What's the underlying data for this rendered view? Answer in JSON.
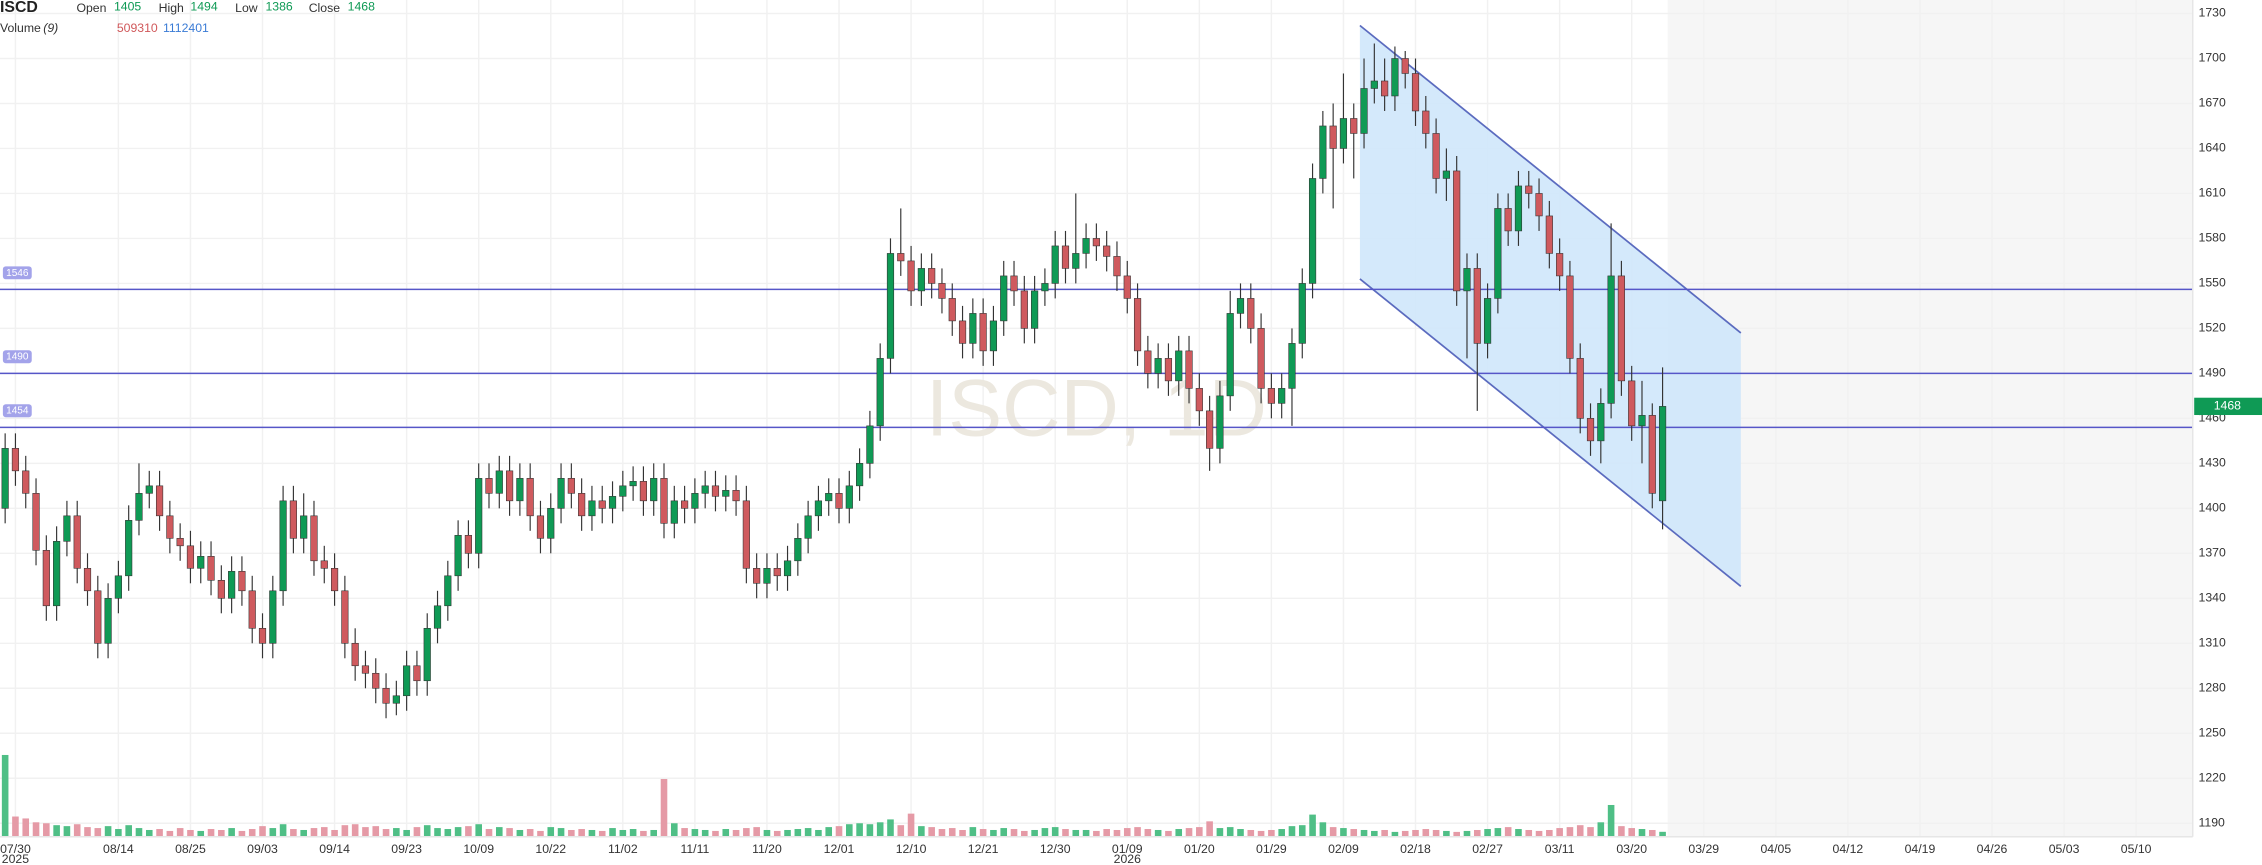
{
  "header": {
    "symbol": "ISCD",
    "open_label": "Open",
    "high_label": "High",
    "low_label": "Low",
    "close_label": "Close",
    "volume_label": "Volume",
    "volume_period": "(9)"
  },
  "watermark": "ISCD, 1D",
  "chart_data": [
    {
      "type": "candlestick",
      "up_color": "#0f9a55",
      "down_color": "#cf5a5e",
      "wick_color": "#333333",
      "grid": true,
      "xlim": [
        -0.5,
        212.5
      ],
      "ylim": [
        1181,
        1739
      ],
      "yticks": [
        1190,
        1220,
        1250,
        1280,
        1310,
        1340,
        1370,
        1400,
        1430,
        1460,
        1490,
        1520,
        1550,
        1580,
        1610,
        1640,
        1670,
        1700,
        1730
      ],
      "xticks": [
        {
          "value": 1,
          "label": "07/30",
          "year": "2025"
        },
        {
          "value": 11,
          "label": "08/14"
        },
        {
          "value": 18,
          "label": "08/25"
        },
        {
          "value": 25,
          "label": "09/03"
        },
        {
          "value": 32,
          "label": "09/14"
        },
        {
          "value": 39,
          "label": "09/23"
        },
        {
          "value": 46,
          "label": "10/09"
        },
        {
          "value": 53,
          "label": "10/22"
        },
        {
          "value": 60,
          "label": "11/02"
        },
        {
          "value": 67,
          "label": "11/11"
        },
        {
          "value": 74,
          "label": "11/20"
        },
        {
          "value": 81,
          "label": "12/01"
        },
        {
          "value": 88,
          "label": "12/10"
        },
        {
          "value": 95,
          "label": "12/21"
        },
        {
          "value": 102,
          "label": "12/30"
        },
        {
          "value": 109,
          "label": "01/09",
          "year": "2026"
        },
        {
          "value": 116,
          "label": "01/20"
        },
        {
          "value": 123,
          "label": "01/29"
        },
        {
          "value": 130,
          "label": "02/09"
        },
        {
          "value": 137,
          "label": "02/18"
        },
        {
          "value": 144,
          "label": "02/27"
        },
        {
          "value": 151,
          "label": "03/11"
        },
        {
          "value": 158,
          "label": "03/20"
        },
        {
          "value": 165,
          "label": "03/29"
        },
        {
          "value": 172,
          "label": "04/05"
        },
        {
          "value": 179,
          "label": "04/12"
        },
        {
          "value": 186,
          "label": "04/19"
        },
        {
          "value": 193,
          "label": "04/26"
        },
        {
          "value": 200,
          "label": "05/03"
        },
        {
          "value": 207,
          "label": "05/10"
        }
      ],
      "open": [
        1400,
        1440,
        1425,
        1410,
        1372,
        1335,
        1378,
        1395,
        1360,
        1345,
        1310,
        1340,
        1355,
        1392,
        1410,
        1415,
        1395,
        1380,
        1375,
        1360,
        1368,
        1352,
        1340,
        1358,
        1345,
        1320,
        1310,
        1345,
        1405,
        1380,
        1395,
        1365,
        1360,
        1345,
        1310,
        1295,
        1290,
        1280,
        1270,
        1275,
        1295,
        1285,
        1320,
        1335,
        1355,
        1382,
        1370,
        1420,
        1410,
        1425,
        1405,
        1420,
        1395,
        1380,
        1400,
        1420,
        1410,
        1395,
        1405,
        1400,
        1408,
        1415,
        1418,
        1405,
        1420,
        1390,
        1405,
        1400,
        1410,
        1415,
        1408,
        1412,
        1405,
        1360,
        1350,
        1360,
        1355,
        1365,
        1380,
        1395,
        1405,
        1410,
        1400,
        1415,
        1430,
        1455,
        1500,
        1570,
        1565,
        1545,
        1560,
        1550,
        1540,
        1525,
        1510,
        1530,
        1505,
        1525,
        1555,
        1545,
        1520,
        1545,
        1550,
        1575,
        1560,
        1570,
        1580,
        1575,
        1568,
        1555,
        1540,
        1505,
        1490,
        1500,
        1485,
        1505,
        1480,
        1465,
        1440,
        1475,
        1530,
        1540,
        1520,
        1480,
        1470,
        1480,
        1510,
        1550,
        1620,
        1655,
        1640,
        1660,
        1650,
        1680,
        1685,
        1675,
        1700,
        1690,
        1665,
        1650,
        1620,
        1625,
        1545,
        1560,
        1510,
        1540,
        1600,
        1585,
        1615,
        1610,
        1595,
        1570,
        1555,
        1500,
        1460,
        1445,
        1470,
        1555,
        1485,
        1455,
        1462,
        1405
      ],
      "high": [
        1450,
        1450,
        1435,
        1420,
        1382,
        1388,
        1405,
        1405,
        1370,
        1355,
        1350,
        1365,
        1402,
        1430,
        1425,
        1425,
        1405,
        1390,
        1385,
        1378,
        1378,
        1362,
        1368,
        1368,
        1355,
        1330,
        1355,
        1415,
        1415,
        1410,
        1405,
        1375,
        1370,
        1355,
        1320,
        1305,
        1300,
        1290,
        1285,
        1305,
        1305,
        1330,
        1345,
        1365,
        1392,
        1392,
        1430,
        1430,
        1435,
        1435,
        1430,
        1430,
        1405,
        1410,
        1430,
        1430,
        1420,
        1415,
        1415,
        1418,
        1425,
        1428,
        1428,
        1430,
        1430,
        1415,
        1415,
        1420,
        1425,
        1425,
        1422,
        1422,
        1415,
        1370,
        1370,
        1370,
        1375,
        1390,
        1405,
        1415,
        1420,
        1420,
        1425,
        1440,
        1465,
        1510,
        1580,
        1600,
        1575,
        1570,
        1570,
        1560,
        1550,
        1535,
        1540,
        1540,
        1535,
        1565,
        1565,
        1555,
        1555,
        1560,
        1585,
        1585,
        1610,
        1590,
        1590,
        1585,
        1578,
        1565,
        1550,
        1515,
        1510,
        1510,
        1515,
        1515,
        1490,
        1475,
        1485,
        1545,
        1550,
        1550,
        1530,
        1490,
        1490,
        1520,
        1560,
        1630,
        1665,
        1670,
        1690,
        1670,
        1700,
        1710,
        1700,
        1708,
        1705,
        1700,
        1675,
        1660,
        1640,
        1635,
        1570,
        1570,
        1550,
        1610,
        1610,
        1625,
        1625,
        1620,
        1605,
        1580,
        1565,
        1510,
        1470,
        1480,
        1590,
        1565,
        1495,
        1485,
        1470,
        1494
      ],
      "low": [
        1390,
        1415,
        1400,
        1362,
        1325,
        1325,
        1368,
        1350,
        1335,
        1300,
        1300,
        1330,
        1345,
        1382,
        1400,
        1385,
        1370,
        1365,
        1350,
        1350,
        1342,
        1330,
        1330,
        1335,
        1310,
        1300,
        1300,
        1335,
        1370,
        1370,
        1355,
        1350,
        1335,
        1300,
        1285,
        1280,
        1270,
        1260,
        1262,
        1265,
        1275,
        1275,
        1310,
        1325,
        1345,
        1360,
        1360,
        1400,
        1400,
        1395,
        1395,
        1385,
        1370,
        1370,
        1390,
        1400,
        1385,
        1385,
        1390,
        1390,
        1398,
        1405,
        1395,
        1395,
        1380,
        1380,
        1390,
        1390,
        1400,
        1398,
        1398,
        1395,
        1350,
        1340,
        1340,
        1345,
        1345,
        1355,
        1370,
        1385,
        1395,
        1390,
        1390,
        1405,
        1420,
        1445,
        1490,
        1555,
        1535,
        1535,
        1540,
        1530,
        1515,
        1500,
        1500,
        1495,
        1495,
        1515,
        1535,
        1510,
        1510,
        1535,
        1540,
        1550,
        1550,
        1560,
        1565,
        1558,
        1545,
        1530,
        1495,
        1480,
        1480,
        1475,
        1475,
        1470,
        1455,
        1425,
        1430,
        1465,
        1520,
        1510,
        1470,
        1460,
        1460,
        1455,
        1500,
        1540,
        1610,
        1600,
        1630,
        1620,
        1640,
        1670,
        1665,
        1665,
        1680,
        1655,
        1640,
        1610,
        1605,
        1535,
        1500,
        1465,
        1500,
        1530,
        1575,
        1575,
        1600,
        1585,
        1560,
        1545,
        1490,
        1450,
        1435,
        1430,
        1460,
        1475,
        1445,
        1430,
        1400,
        1386
      ],
      "close": [
        1440,
        1425,
        1410,
        1372,
        1335,
        1378,
        1395,
        1360,
        1345,
        1310,
        1340,
        1355,
        1392,
        1410,
        1415,
        1395,
        1380,
        1375,
        1360,
        1368,
        1352,
        1340,
        1358,
        1345,
        1320,
        1310,
        1345,
        1405,
        1380,
        1395,
        1365,
        1360,
        1345,
        1310,
        1295,
        1290,
        1280,
        1270,
        1275,
        1295,
        1285,
        1320,
        1335,
        1355,
        1382,
        1370,
        1420,
        1410,
        1425,
        1405,
        1420,
        1395,
        1380,
        1400,
        1420,
        1410,
        1395,
        1405,
        1400,
        1408,
        1415,
        1418,
        1405,
        1420,
        1390,
        1405,
        1400,
        1410,
        1415,
        1408,
        1412,
        1405,
        1360,
        1350,
        1360,
        1355,
        1365,
        1380,
        1395,
        1405,
        1410,
        1400,
        1415,
        1430,
        1455,
        1500,
        1570,
        1565,
        1545,
        1560,
        1550,
        1540,
        1525,
        1510,
        1530,
        1505,
        1525,
        1555,
        1545,
        1520,
        1545,
        1550,
        1575,
        1560,
        1570,
        1580,
        1575,
        1568,
        1555,
        1540,
        1505,
        1490,
        1500,
        1485,
        1505,
        1480,
        1465,
        1440,
        1475,
        1530,
        1540,
        1520,
        1480,
        1470,
        1480,
        1510,
        1550,
        1620,
        1655,
        1640,
        1660,
        1650,
        1680,
        1685,
        1675,
        1700,
        1690,
        1665,
        1650,
        1620,
        1625,
        1545,
        1560,
        1510,
        1540,
        1600,
        1585,
        1615,
        1610,
        1595,
        1570,
        1555,
        1500,
        1460,
        1445,
        1470,
        1555,
        1485,
        1455,
        1462,
        1410,
        1468
      ],
      "levels": [
        1546,
        1490,
        1454
      ],
      "level_color": "#5656c8",
      "channel": {
        "x": [
          131.6,
          168.6
        ],
        "upper": [
          1722,
          1517
        ],
        "lower": [
          1553,
          1348
        ],
        "color": "#5b6bbf",
        "fill": "#cfe7fb"
      }
    },
    {
      "type": "bar",
      "up_color": "#4fbf86",
      "down_color": "#e59aa6",
      "ylim": [
        0,
        9000000
      ],
      "volume_ma": 1112401,
      "values": [
        8500000,
        2100000,
        1900000,
        1500000,
        1400000,
        1200000,
        1100000,
        1300000,
        1000000,
        900000,
        1100000,
        800000,
        1200000,
        900000,
        700000,
        800000,
        600000,
        900000,
        700000,
        600000,
        800000,
        700000,
        900000,
        600000,
        800000,
        1100000,
        900000,
        1300000,
        800000,
        700000,
        900000,
        1000000,
        700000,
        1200000,
        1300000,
        1000000,
        1100000,
        800000,
        900000,
        700000,
        1000000,
        1200000,
        900000,
        800000,
        1000000,
        1100000,
        1300000,
        800000,
        1000000,
        900000,
        700000,
        800000,
        600000,
        1000000,
        900000,
        700000,
        800000,
        700000,
        600000,
        900000,
        700000,
        800000,
        600000,
        700000,
        6000000,
        1400000,
        900000,
        800000,
        700000,
        600000,
        800000,
        700000,
        900000,
        1000000,
        700000,
        600000,
        700000,
        800000,
        900000,
        700000,
        1000000,
        1100000,
        1300000,
        1400000,
        1300000,
        1500000,
        1800000,
        1200000,
        2400000,
        1100000,
        1000000,
        800000,
        900000,
        700000,
        1000000,
        800000,
        700000,
        900000,
        800000,
        600000,
        700000,
        900000,
        1000000,
        800000,
        700000,
        700000,
        600000,
        800000,
        700000,
        900000,
        1000000,
        800000,
        700000,
        600000,
        800000,
        900000,
        1000000,
        1600000,
        900000,
        1000000,
        800000,
        700000,
        600000,
        700000,
        800000,
        1100000,
        1200000,
        2300000,
        1500000,
        1000000,
        900000,
        800000,
        700000,
        600000,
        700000,
        500000,
        600000,
        700000,
        800000,
        700000,
        600000,
        500000,
        600000,
        700000,
        800000,
        900000,
        1000000,
        800000,
        700000,
        600000,
        700000,
        900000,
        1000000,
        1200000,
        1000000,
        1500000,
        3300000,
        1100000,
        900000,
        800000,
        700000,
        509310
      ]
    }
  ]
}
